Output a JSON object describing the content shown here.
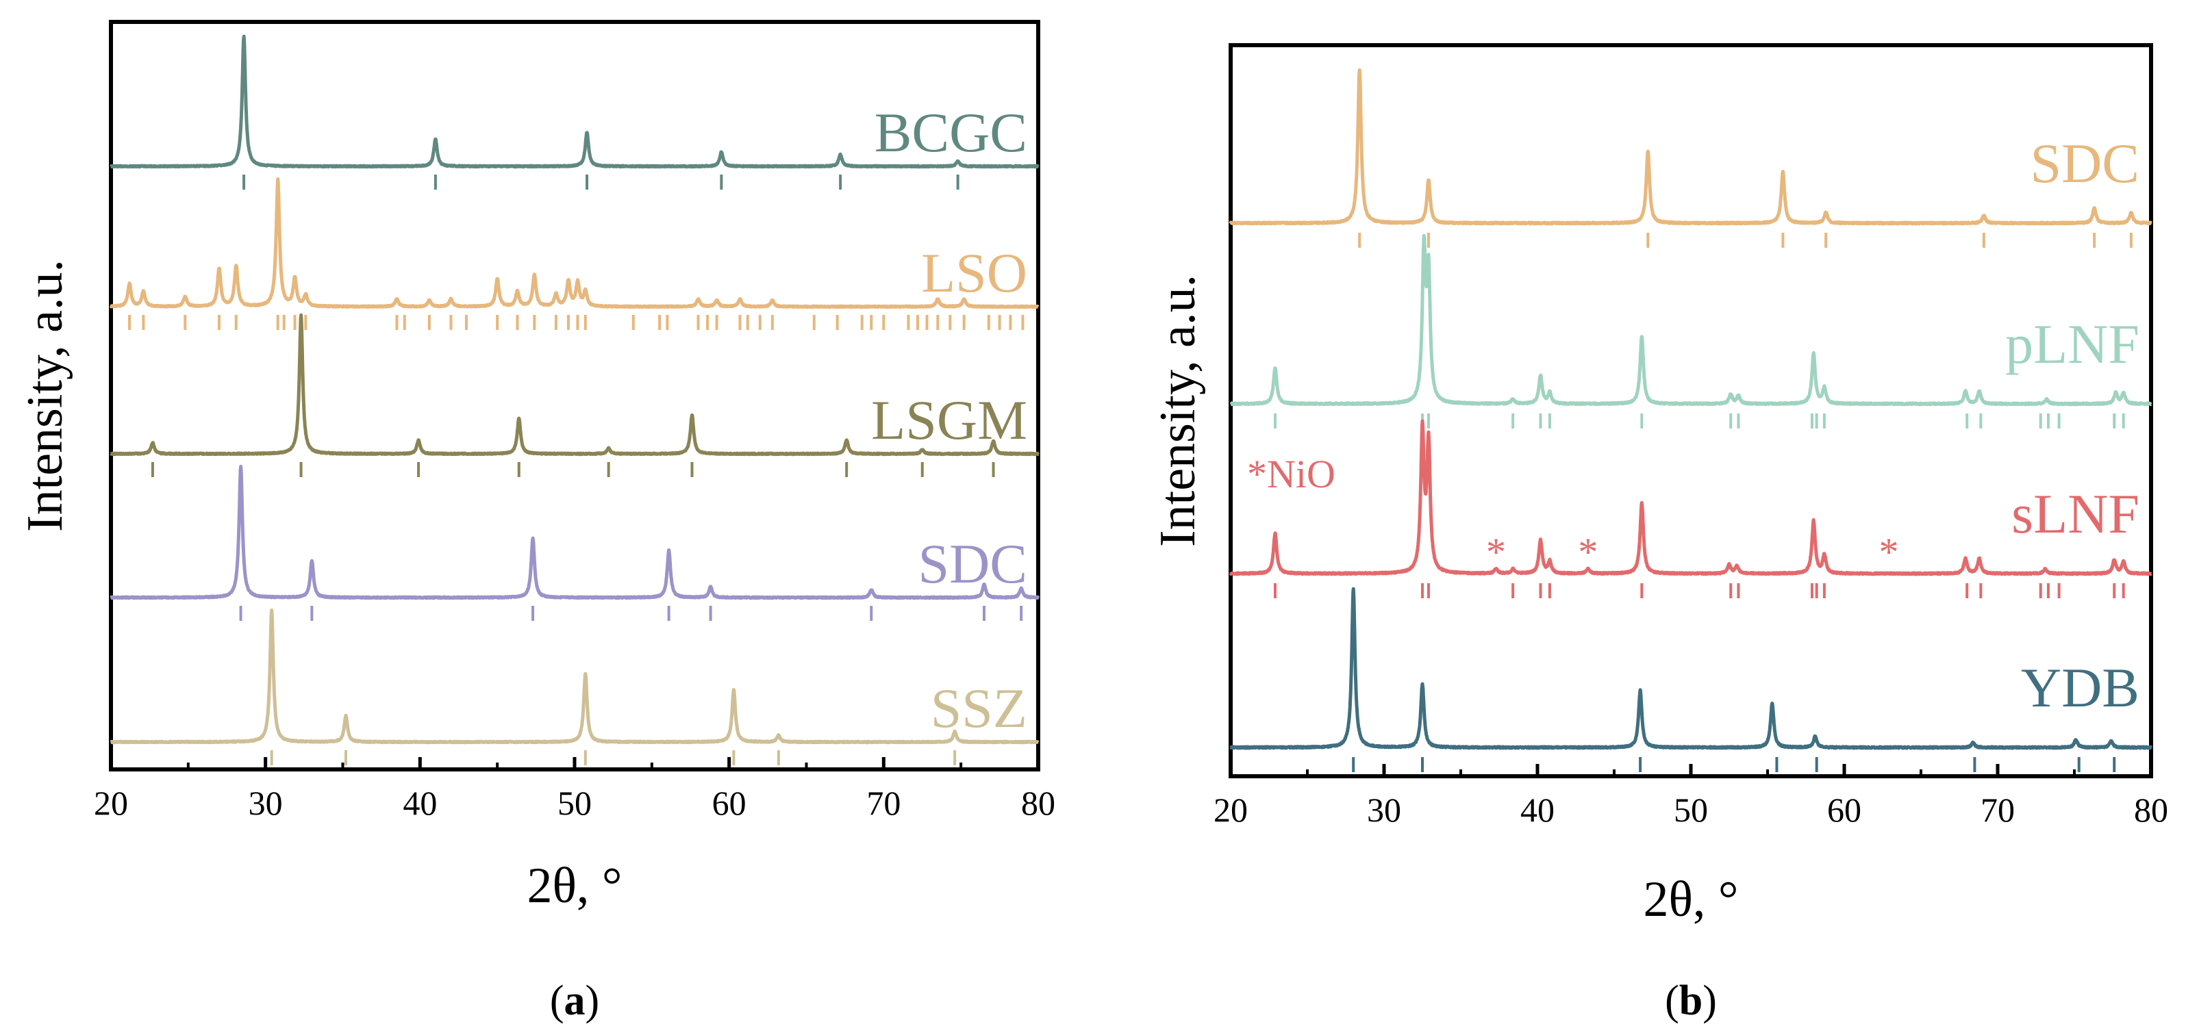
{
  "chart_data": [
    {
      "panel": "a",
      "caption_prefix": "(",
      "caption_letter": "a",
      "caption_suffix": ")",
      "type": "line",
      "xlabel": "2θ, °",
      "ylabel": "Intensity, a.u.",
      "xlim": [
        20,
        80
      ],
      "xticks": [
        20,
        30,
        40,
        50,
        60,
        70,
        80
      ],
      "grid": false,
      "series": [
        {
          "name": "BCGC",
          "color": "#5f8880",
          "peaks": [
            {
              "x": 28.6,
              "h": 1.0
            },
            {
              "x": 41.0,
              "h": 0.21
            },
            {
              "x": 50.8,
              "h": 0.26
            },
            {
              "x": 59.5,
              "h": 0.11
            },
            {
              "x": 67.2,
              "h": 0.09
            },
            {
              "x": 74.8,
              "h": 0.04
            }
          ],
          "ref_ticks": [
            28.6,
            41.0,
            50.8,
            59.5,
            67.2,
            74.8
          ]
        },
        {
          "name": "LSO",
          "color": "#e7b77c",
          "peaks": [
            {
              "x": 21.2,
              "h": 0.18
            },
            {
              "x": 22.1,
              "h": 0.12
            },
            {
              "x": 24.8,
              "h": 0.08
            },
            {
              "x": 27.0,
              "h": 0.3
            },
            {
              "x": 28.1,
              "h": 0.32
            },
            {
              "x": 30.8,
              "h": 1.0
            },
            {
              "x": 31.9,
              "h": 0.22
            },
            {
              "x": 32.6,
              "h": 0.09
            },
            {
              "x": 38.5,
              "h": 0.06
            },
            {
              "x": 40.6,
              "h": 0.05
            },
            {
              "x": 42.0,
              "h": 0.06
            },
            {
              "x": 45.0,
              "h": 0.22
            },
            {
              "x": 46.3,
              "h": 0.12
            },
            {
              "x": 47.4,
              "h": 0.25
            },
            {
              "x": 48.8,
              "h": 0.1
            },
            {
              "x": 49.6,
              "h": 0.2
            },
            {
              "x": 50.2,
              "h": 0.19
            },
            {
              "x": 50.7,
              "h": 0.12
            },
            {
              "x": 58.0,
              "h": 0.06
            },
            {
              "x": 59.2,
              "h": 0.05
            },
            {
              "x": 60.7,
              "h": 0.06
            },
            {
              "x": 62.8,
              "h": 0.05
            },
            {
              "x": 73.5,
              "h": 0.06
            },
            {
              "x": 75.2,
              "h": 0.06
            }
          ],
          "ref_ticks": [
            21.2,
            22.1,
            24.8,
            27.0,
            28.1,
            30.8,
            31.2,
            31.9,
            32.6,
            38.5,
            39.0,
            40.6,
            42.0,
            43.0,
            45.0,
            46.3,
            47.4,
            48.8,
            49.6,
            50.2,
            50.7,
            53.8,
            55.5,
            56.0,
            58.0,
            58.6,
            59.2,
            60.7,
            61.2,
            62.0,
            62.8,
            65.5,
            67.0,
            68.6,
            69.2,
            70.0,
            71.6,
            72.2,
            72.8,
            73.5,
            74.3,
            75.2,
            76.8,
            77.5,
            78.2,
            79.0
          ]
        },
        {
          "name": "LSGM",
          "color": "#8a8455",
          "peaks": [
            {
              "x": 22.7,
              "h": 0.08
            },
            {
              "x": 32.3,
              "h": 1.0
            },
            {
              "x": 39.9,
              "h": 0.1
            },
            {
              "x": 46.4,
              "h": 0.26
            },
            {
              "x": 52.2,
              "h": 0.04
            },
            {
              "x": 57.6,
              "h": 0.28
            },
            {
              "x": 67.6,
              "h": 0.1
            },
            {
              "x": 72.5,
              "h": 0.03
            },
            {
              "x": 77.1,
              "h": 0.09
            }
          ],
          "ref_ticks": [
            22.7,
            32.3,
            39.9,
            46.4,
            52.2,
            57.6,
            67.6,
            72.5,
            77.1
          ]
        },
        {
          "name": "SDC",
          "color": "#9b93c8",
          "peaks": [
            {
              "x": 28.4,
              "h": 1.0
            },
            {
              "x": 33.0,
              "h": 0.28
            },
            {
              "x": 47.3,
              "h": 0.45
            },
            {
              "x": 56.1,
              "h": 0.36
            },
            {
              "x": 58.8,
              "h": 0.08
            },
            {
              "x": 69.2,
              "h": 0.06
            },
            {
              "x": 76.5,
              "h": 0.1
            },
            {
              "x": 78.9,
              "h": 0.07
            }
          ],
          "ref_ticks": [
            28.4,
            33.0,
            47.3,
            56.1,
            58.8,
            69.2,
            76.5,
            78.9
          ]
        },
        {
          "name": "SSZ",
          "color": "#cfbf96",
          "peaks": [
            {
              "x": 30.4,
              "h": 1.0
            },
            {
              "x": 35.2,
              "h": 0.2
            },
            {
              "x": 50.7,
              "h": 0.52
            },
            {
              "x": 60.3,
              "h": 0.4
            },
            {
              "x": 63.2,
              "h": 0.05
            },
            {
              "x": 74.6,
              "h": 0.08
            }
          ],
          "ref_ticks": [
            30.4,
            35.2,
            50.7,
            60.3,
            63.2,
            74.6
          ]
        }
      ]
    },
    {
      "panel": "b",
      "caption_prefix": "(",
      "caption_letter": "b",
      "caption_suffix": ")",
      "type": "line",
      "xlabel": "2θ, °",
      "ylabel": "Intensity, a.u.",
      "xlim": [
        20,
        80
      ],
      "xticks": [
        20,
        30,
        40,
        50,
        60,
        70,
        80
      ],
      "grid": false,
      "series": [
        {
          "name": "SDC",
          "color": "#e7b77c",
          "peaks": [
            {
              "x": 28.4,
              "h": 1.0
            },
            {
              "x": 32.9,
              "h": 0.28
            },
            {
              "x": 47.2,
              "h": 0.47
            },
            {
              "x": 56.0,
              "h": 0.34
            },
            {
              "x": 58.8,
              "h": 0.07
            },
            {
              "x": 69.1,
              "h": 0.05
            },
            {
              "x": 76.3,
              "h": 0.1
            },
            {
              "x": 78.7,
              "h": 0.07
            }
          ],
          "ref_ticks": [
            28.4,
            32.9,
            47.2,
            56.0,
            58.8,
            69.1,
            76.3,
            78.7
          ]
        },
        {
          "name": "pLNF",
          "color": "#9fd3c0",
          "peaks": [
            {
              "x": 22.9,
              "h": 0.23
            },
            {
              "x": 32.6,
              "h": 0.94
            },
            {
              "x": 32.9,
              "h": 0.8
            },
            {
              "x": 38.4,
              "h": 0.03
            },
            {
              "x": 40.2,
              "h": 0.18
            },
            {
              "x": 40.8,
              "h": 0.07
            },
            {
              "x": 46.8,
              "h": 0.43
            },
            {
              "x": 52.6,
              "h": 0.06
            },
            {
              "x": 53.1,
              "h": 0.05
            },
            {
              "x": 58.0,
              "h": 0.32
            },
            {
              "x": 58.7,
              "h": 0.1
            },
            {
              "x": 67.9,
              "h": 0.08
            },
            {
              "x": 68.8,
              "h": 0.08
            },
            {
              "x": 73.2,
              "h": 0.03
            },
            {
              "x": 77.7,
              "h": 0.07
            },
            {
              "x": 78.2,
              "h": 0.07
            }
          ],
          "ref_ticks": [
            22.9,
            32.5,
            32.9,
            38.4,
            40.2,
            40.8,
            46.8,
            52.6,
            53.1,
            57.9,
            58.2,
            58.7,
            68.0,
            68.9,
            72.8,
            73.3,
            74.0,
            77.6,
            78.2
          ]
        },
        {
          "name": "sLNF",
          "color": "#e26a6c",
          "peaks": [
            {
              "x": 22.9,
              "h": 0.27
            },
            {
              "x": 32.5,
              "h": 0.93
            },
            {
              "x": 32.9,
              "h": 0.85
            },
            {
              "x": 37.3,
              "h": 0.03
            },
            {
              "x": 38.4,
              "h": 0.03
            },
            {
              "x": 40.2,
              "h": 0.22
            },
            {
              "x": 40.8,
              "h": 0.08
            },
            {
              "x": 43.3,
              "h": 0.03
            },
            {
              "x": 46.8,
              "h": 0.47
            },
            {
              "x": 52.5,
              "h": 0.06
            },
            {
              "x": 53.0,
              "h": 0.05
            },
            {
              "x": 58.0,
              "h": 0.35
            },
            {
              "x": 58.7,
              "h": 0.12
            },
            {
              "x": 67.9,
              "h": 0.1
            },
            {
              "x": 68.8,
              "h": 0.1
            },
            {
              "x": 73.1,
              "h": 0.03
            },
            {
              "x": 77.6,
              "h": 0.09
            },
            {
              "x": 78.2,
              "h": 0.08
            }
          ],
          "ref_ticks": [
            22.9,
            32.5,
            32.9,
            38.4,
            40.2,
            40.8,
            46.8,
            52.6,
            53.1,
            57.9,
            58.2,
            58.7,
            68.0,
            68.9,
            72.8,
            73.3,
            74.0,
            77.6,
            78.2
          ],
          "markers": [
            {
              "x": 37.3,
              "label": "*"
            },
            {
              "x": 43.3,
              "label": "*"
            },
            {
              "x": 62.9,
              "label": "*"
            }
          ]
        },
        {
          "name": "YDB",
          "color": "#3f6f80",
          "peaks": [
            {
              "x": 28.0,
              "h": 1.0
            },
            {
              "x": 32.5,
              "h": 0.4
            },
            {
              "x": 46.7,
              "h": 0.36
            },
            {
              "x": 55.3,
              "h": 0.28
            },
            {
              "x": 58.1,
              "h": 0.07
            },
            {
              "x": 68.4,
              "h": 0.03
            },
            {
              "x": 75.1,
              "h": 0.05
            },
            {
              "x": 77.4,
              "h": 0.04
            }
          ],
          "ref_ticks": [
            28.0,
            32.5,
            46.7,
            55.6,
            58.2,
            68.5,
            75.3,
            77.6
          ]
        }
      ],
      "annotations": [
        {
          "text": "*NiO",
          "color": "#e26a6c",
          "near_series": "sLNF"
        }
      ]
    }
  ]
}
